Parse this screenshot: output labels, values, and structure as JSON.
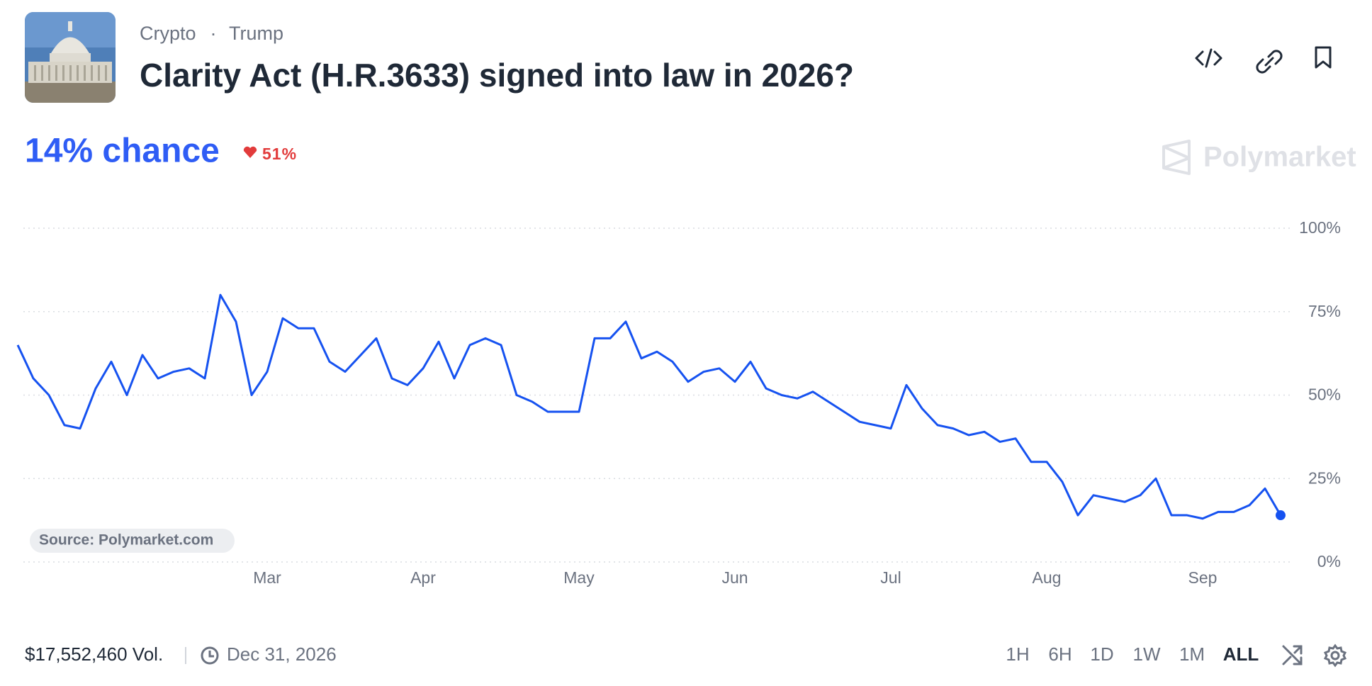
{
  "header": {
    "breadcrumb": [
      "Crypto",
      "Trump"
    ],
    "title": "Clarity Act (H.R.3633) signed into law in 2026?"
  },
  "probability": {
    "label": "14% chance",
    "change": "51%"
  },
  "watermark": "Polymarket",
  "chart_data": {
    "type": "line",
    "source": "Source: Polymarket.com",
    "categories": [
      null,
      null,
      null,
      null,
      null,
      null,
      null,
      null,
      null,
      null,
      null,
      null,
      null,
      null,
      null,
      null,
      "Mar",
      null,
      null,
      null,
      null,
      null,
      null,
      null,
      null,
      null,
      "Apr",
      null,
      null,
      null,
      null,
      null,
      null,
      null,
      null,
      null,
      "May",
      null,
      null,
      null,
      null,
      null,
      null,
      null,
      null,
      null,
      "Jun",
      null,
      null,
      null,
      null,
      null,
      null,
      null,
      null,
      null,
      "Jul",
      null,
      null,
      null,
      null,
      null,
      null,
      null,
      null,
      null,
      "Aug",
      null,
      null,
      null,
      null,
      null,
      null,
      null,
      null,
      null,
      "Sep",
      null,
      null,
      null,
      null,
      null
    ],
    "series": [
      {
        "name": "Yes",
        "color": "#1652f0",
        "values": [
          65,
          55,
          50,
          41,
          40,
          52,
          60,
          50,
          62,
          55,
          57,
          58,
          55,
          80,
          72,
          50,
          57,
          73,
          70,
          70,
          60,
          57,
          62,
          67,
          55,
          53,
          58,
          66,
          55,
          65,
          67,
          65,
          50,
          48,
          45,
          45,
          45,
          67,
          67,
          72,
          61,
          63,
          60,
          54,
          57,
          58,
          54,
          60,
          52,
          50,
          49,
          51,
          48,
          45,
          42,
          41,
          40,
          53,
          46,
          41,
          40,
          38,
          39,
          36,
          37,
          30,
          30,
          24,
          14,
          20,
          19,
          18,
          20,
          25,
          14,
          14,
          13,
          15,
          15,
          17,
          22,
          14
        ]
      }
    ],
    "ylim": [
      0,
      100
    ],
    "yticks": [
      {
        "value": 0,
        "label": "0%"
      },
      {
        "value": 25,
        "label": "25%"
      },
      {
        "value": 50,
        "label": "50%"
      },
      {
        "value": 75,
        "label": "75%"
      },
      {
        "value": 100,
        "label": "100%"
      }
    ],
    "grid": true
  },
  "footer": {
    "volume": "$17,552,460 Vol.",
    "end_date": "Dec 31, 2026",
    "ranges": [
      "1H",
      "6H",
      "1D",
      "1W",
      "1M",
      "ALL"
    ],
    "active_range": "ALL"
  }
}
